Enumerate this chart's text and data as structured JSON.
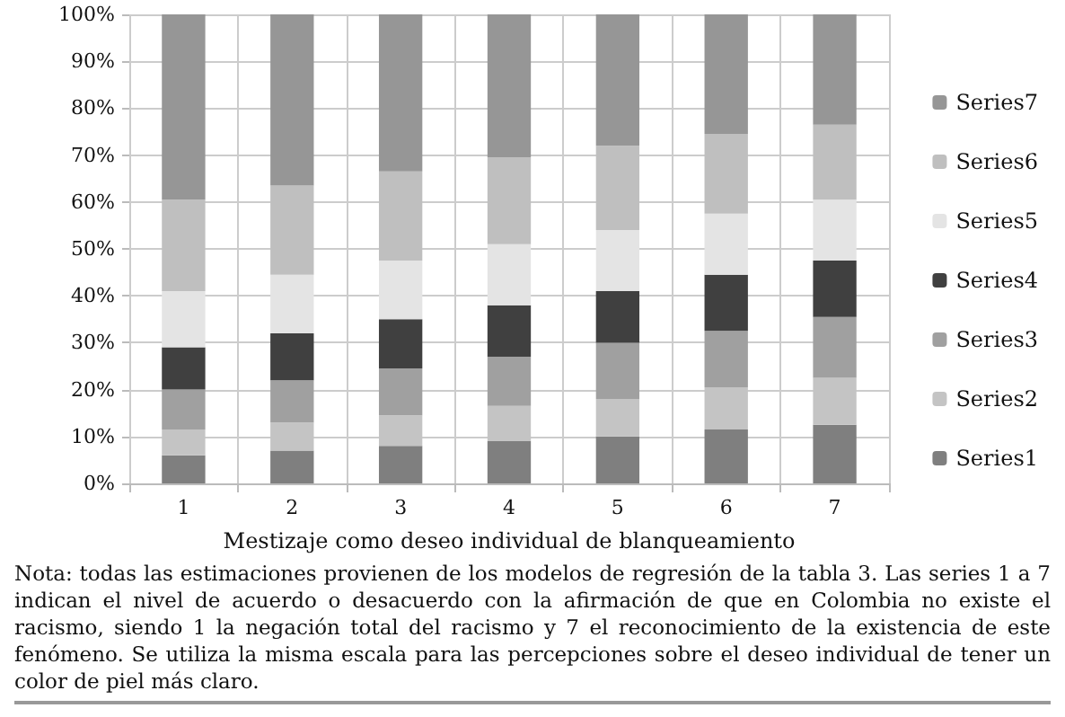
{
  "chart_data": {
    "type": "bar",
    "stacked": true,
    "xlabel": "Mestizaje como deseo individual de blanqueamiento",
    "categories": [
      "1",
      "2",
      "3",
      "4",
      "5",
      "6",
      "7"
    ],
    "series": [
      {
        "name": "Series1",
        "color": "#7f7f7f",
        "values": [
          6,
          7,
          8,
          9,
          10,
          11.5,
          12.5
        ]
      },
      {
        "name": "Series2",
        "color": "#c4c4c4",
        "values": [
          5.5,
          6,
          6.5,
          7.5,
          8,
          9,
          10
        ]
      },
      {
        "name": "Series3",
        "color": "#a0a0a0",
        "values": [
          8.5,
          9,
          10,
          10.5,
          12,
          12,
          13
        ]
      },
      {
        "name": "Series4",
        "color": "#404040",
        "values": [
          9,
          10,
          10.5,
          11,
          11,
          12,
          12
        ]
      },
      {
        "name": "Series5",
        "color": "#e4e4e4",
        "values": [
          12,
          12.5,
          12.5,
          13,
          13,
          13,
          13
        ]
      },
      {
        "name": "Series6",
        "color": "#bfbfbf",
        "values": [
          19.5,
          19,
          19,
          18.5,
          18,
          17,
          16
        ]
      },
      {
        "name": "Series7",
        "color": "#969696",
        "values": [
          39.5,
          36.5,
          33.5,
          30.5,
          28,
          25.5,
          23.5
        ]
      }
    ],
    "ylim": [
      0,
      100
    ],
    "yticks": [
      {
        "value": 0,
        "label": "0%"
      },
      {
        "value": 10,
        "label": "10%"
      },
      {
        "value": 20,
        "label": "20%"
      },
      {
        "value": 30,
        "label": "30%"
      },
      {
        "value": 40,
        "label": "40%"
      },
      {
        "value": 50,
        "label": "50%"
      },
      {
        "value": 60,
        "label": "60%"
      },
      {
        "value": 70,
        "label": "70%"
      },
      {
        "value": 80,
        "label": "80%"
      },
      {
        "value": 90,
        "label": "90%"
      },
      {
        "value": 100,
        "label": "100%"
      }
    ],
    "grid": true,
    "legend": "right",
    "annotations": [
      "Nota: todas las estimaciones provienen de los modelos de regresión de la tabla 3. Las series 1 a 7 indican el nivel de acuerdo o desacuerdo con la afirmación de que en Colombia no existe el racismo, siendo 1 la negación total del racismo y 7 el reconocimiento de la existencia de este fenómeno. Se utiliza la misma escala para las percepciones sobre el deseo individual de tener un color de piel más claro."
    ]
  }
}
